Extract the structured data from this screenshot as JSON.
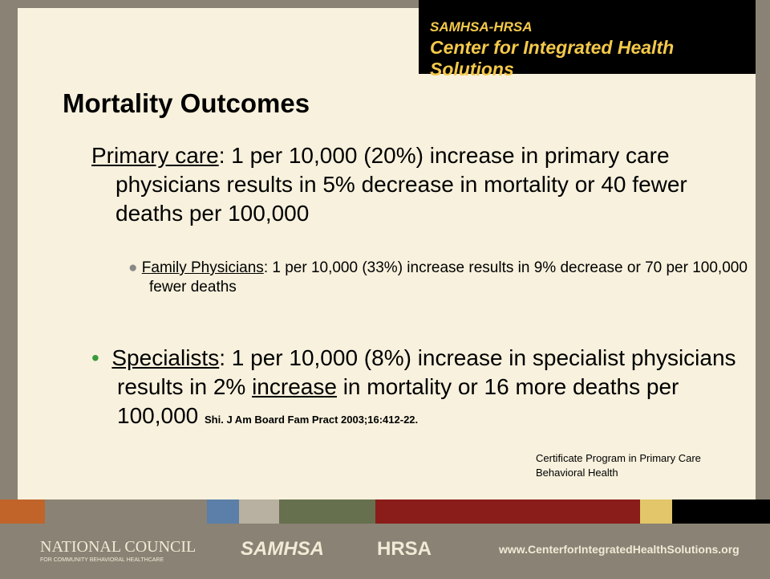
{
  "header": {
    "line1": "SAMHSA-HRSA",
    "line2": "Center for Integrated Health Solutions"
  },
  "title": "Mortality Outcomes",
  "items": [
    {
      "label": "Primary care",
      "text": ":  1 per 10,000 (20%) increase in primary care physicians results in 5% decrease in mortality or 40 fewer deaths per 100,000"
    },
    {
      "label": "Family Physicians",
      "text": ": 1 per 10,000 (33%) increase results in 9% decrease or 70 per 100,000 fewer deaths"
    },
    {
      "label": "Specialists",
      "text1": ":  1 per 10,000 (8%) increase in specialist physicians results in 2% ",
      "emphasis": "increase",
      "text2": " in mortality or 16 more deaths per 100,000",
      "citation": "Shi.  J Am Board Fam Pract 2003;16:412-22."
    }
  ],
  "certificate": "Certificate Program in Primary Care Behavioral Health",
  "footer": {
    "org1": "NATIONAL COUNCIL",
    "org1_sub": "FOR COMMUNITY BEHAVIORAL HEALTHCARE",
    "org2": "SAMHSA",
    "org3": "HRSA",
    "url": "www.CenterforIntegratedHealthSolutions.org"
  }
}
